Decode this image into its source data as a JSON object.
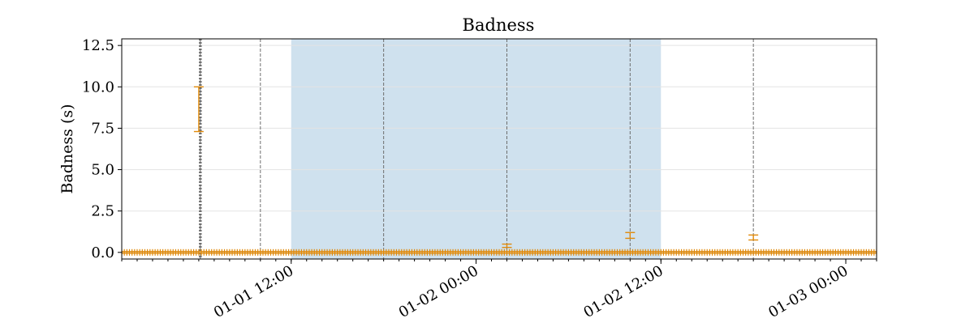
{
  "chart_data": {
    "type": "scatter",
    "title": "Badness",
    "xlabel": "",
    "ylabel": "Badness (s)",
    "x_axis": "datetime",
    "xlim": [
      "2024-01-01T01:00",
      "2024-01-03T02:00"
    ],
    "ylim": [
      -0.4,
      12.9
    ],
    "x_tick_labels": [
      "01-01 12:00",
      "01-02 00:00",
      "01-02 12:00",
      "01-03 00:00"
    ],
    "x_ticks": [
      "2024-01-01T12:00",
      "2024-01-02T00:00",
      "2024-01-02T12:00",
      "2024-01-03T00:00"
    ],
    "y_ticks": [
      0.0,
      2.5,
      5.0,
      7.5,
      10.0,
      12.5
    ],
    "y_tick_labels": [
      "0.0",
      "2.5",
      "5.0",
      "7.5",
      "10.0",
      "12.5"
    ],
    "grid": "y-major",
    "shaded_span": {
      "start": "2024-01-01T12:00",
      "end": "2024-01-02T12:00",
      "color": "#cfe1ee"
    },
    "vertical_lines": [
      "2024-01-01T06:06",
      "2024-01-01T10:00",
      "2024-01-01T18:00",
      "2024-01-02T02:00",
      "2024-01-02T10:00",
      "2024-01-02T18:00"
    ],
    "marker_color": "#e08a0b",
    "baseline_series": {
      "start": "2024-01-01T01:00",
      "end": "2024-01-03T02:00",
      "interval_minutes": 10,
      "y_low": -0.05,
      "y_high": 0.05
    },
    "error_bars": [
      {
        "x": "2024-01-01T06:00",
        "y_low": 7.3,
        "y_high": 10.0
      },
      {
        "x": "2024-01-02T02:00",
        "y_low": 0.3,
        "y_high": 0.5
      },
      {
        "x": "2024-01-02T10:00",
        "y_low": 0.85,
        "y_high": 1.2
      },
      {
        "x": "2024-01-02T18:00",
        "y_low": 0.75,
        "y_high": 1.05
      }
    ]
  }
}
